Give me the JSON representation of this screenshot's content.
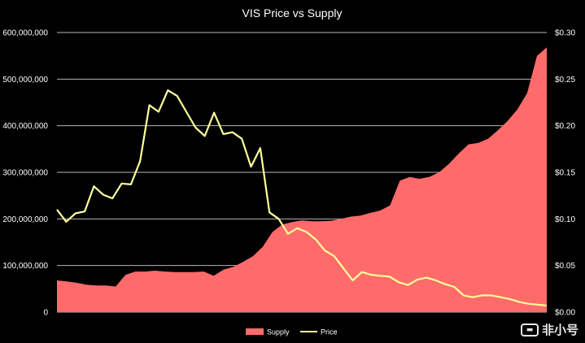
{
  "watermark": {
    "text": "非小号",
    "icon": "feixiaohao-logo-icon"
  },
  "chart_data": {
    "type": "area+line",
    "title": "VIS Price vs Supply",
    "xlabel": "",
    "ylabel": "",
    "grid": true,
    "legend_position": "bottom-center",
    "colors": {
      "supply": "#ff6b6b",
      "price": "#ffff99",
      "grid": "#d9d9d9",
      "background": "#000000"
    },
    "y_left": {
      "lim": [
        0,
        600000000
      ],
      "ticks": [
        "0",
        "100,000,000",
        "200,000,000",
        "300,000,000",
        "400,000,000",
        "500,000,000",
        "600,000,000"
      ]
    },
    "y_right": {
      "lim": [
        0,
        0.3
      ],
      "ticks": [
        "$0.00",
        "$0.05",
        "$0.10",
        "$0.15",
        "$0.20",
        "$0.25",
        "$0.30"
      ]
    },
    "series": [
      {
        "name": "Supply",
        "type": "area",
        "axis": "left",
        "values": [
          68000000,
          66000000,
          63000000,
          59000000,
          57000000,
          57000000,
          55000000,
          80000000,
          87000000,
          87000000,
          89000000,
          87000000,
          86000000,
          86000000,
          86000000,
          87000000,
          78000000,
          91000000,
          97000000,
          108000000,
          120000000,
          140000000,
          172000000,
          188000000,
          193000000,
          197000000,
          195000000,
          195000000,
          196000000,
          200000000,
          205000000,
          207000000,
          213000000,
          218000000,
          229000000,
          282000000,
          290000000,
          286000000,
          290000000,
          300000000,
          318000000,
          340000000,
          360000000,
          363000000,
          372000000,
          390000000,
          410000000,
          435000000,
          470000000,
          550000000,
          568000000
        ]
      },
      {
        "name": "Price",
        "type": "line",
        "axis": "right",
        "values": [
          0.11,
          0.097,
          0.106,
          0.108,
          0.135,
          0.126,
          0.122,
          0.138,
          0.137,
          0.162,
          0.222,
          0.215,
          0.238,
          0.232,
          0.215,
          0.198,
          0.189,
          0.214,
          0.191,
          0.193,
          0.186,
          0.156,
          0.176,
          0.107,
          0.1,
          0.084,
          0.09,
          0.086,
          0.078,
          0.066,
          0.06,
          0.047,
          0.034,
          0.043,
          0.04,
          0.039,
          0.038,
          0.032,
          0.029,
          0.035,
          0.037,
          0.034,
          0.03,
          0.027,
          0.018,
          0.016,
          0.018,
          0.018,
          0.016,
          0.014,
          0.011,
          0.009,
          0.008,
          0.007
        ]
      }
    ]
  }
}
